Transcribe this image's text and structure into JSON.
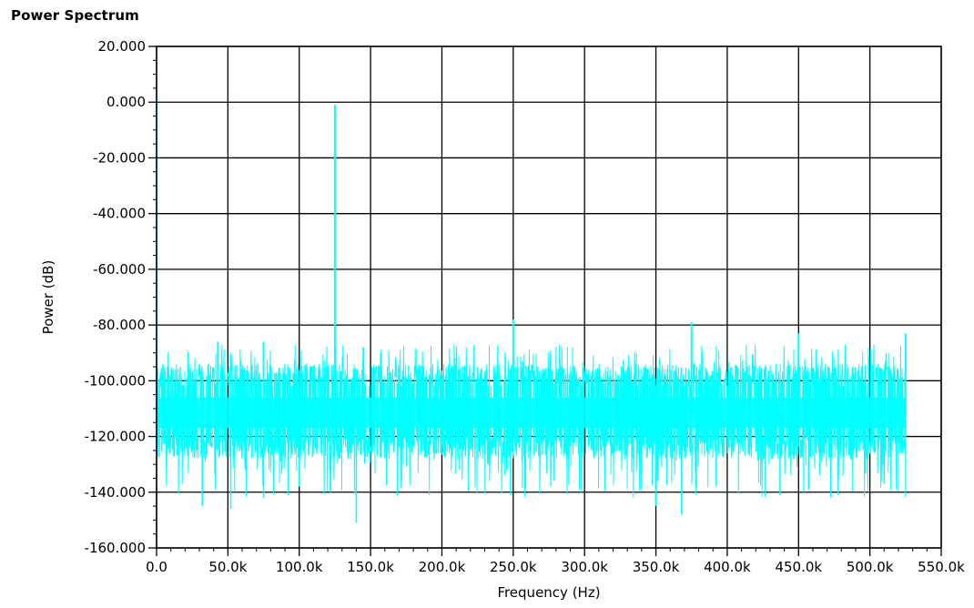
{
  "chart_data": {
    "type": "line",
    "title": "Power Spectrum",
    "xlabel": "Frequency (Hz)",
    "ylabel": "Power (dB)",
    "xlim": [
      0,
      550000
    ],
    "ylim": [
      -160,
      20
    ],
    "x_ticks": [
      0,
      50000,
      100000,
      150000,
      200000,
      250000,
      300000,
      350000,
      400000,
      450000,
      500000,
      550000
    ],
    "x_tick_labels": [
      "0.0",
      "50.0k",
      "100.0k",
      "150.0k",
      "200.0k",
      "250.0k",
      "300.0k",
      "350.0k",
      "400.0k",
      "450.0k",
      "500.0k",
      "550.0k"
    ],
    "y_ticks": [
      20,
      0,
      -20,
      -40,
      -60,
      -80,
      -100,
      -120,
      -140,
      -160
    ],
    "y_tick_labels": [
      "20.000",
      "0.000",
      "-20.000",
      "-40.000",
      "-60.000",
      "-80.000",
      "-100.000",
      "-120.000",
      "-140.000",
      "-160.000"
    ],
    "grid": true,
    "line_color": "#00ffff",
    "series": [
      {
        "noise_floor_db": -113,
        "noise_band_db": [
          -120,
          -102
        ],
        "x_end": 525000,
        "peaks": [
          {
            "x": 0,
            "y": 3
          },
          {
            "x": 125000,
            "y": -1
          },
          {
            "x": 250000,
            "y": -78
          },
          {
            "x": 375000,
            "y": -79
          },
          {
            "x": 450000,
            "y": -83
          },
          {
            "x": 525000,
            "y": -83
          },
          {
            "x": 43000,
            "y": -86
          },
          {
            "x": 75000,
            "y": -86
          },
          {
            "x": 145000,
            "y": -88
          }
        ],
        "dips": [
          {
            "x": 32000,
            "y": -145
          },
          {
            "x": 52000,
            "y": -146
          },
          {
            "x": 75000,
            "y": -142
          },
          {
            "x": 100000,
            "y": -138
          },
          {
            "x": 122000,
            "y": -140
          },
          {
            "x": 140000,
            "y": -151
          },
          {
            "x": 350000,
            "y": -145
          },
          {
            "x": 368000,
            "y": -148
          },
          {
            "x": 437000,
            "y": -141
          },
          {
            "x": 457000,
            "y": -139
          },
          {
            "x": 510000,
            "y": -137
          }
        ]
      }
    ]
  }
}
